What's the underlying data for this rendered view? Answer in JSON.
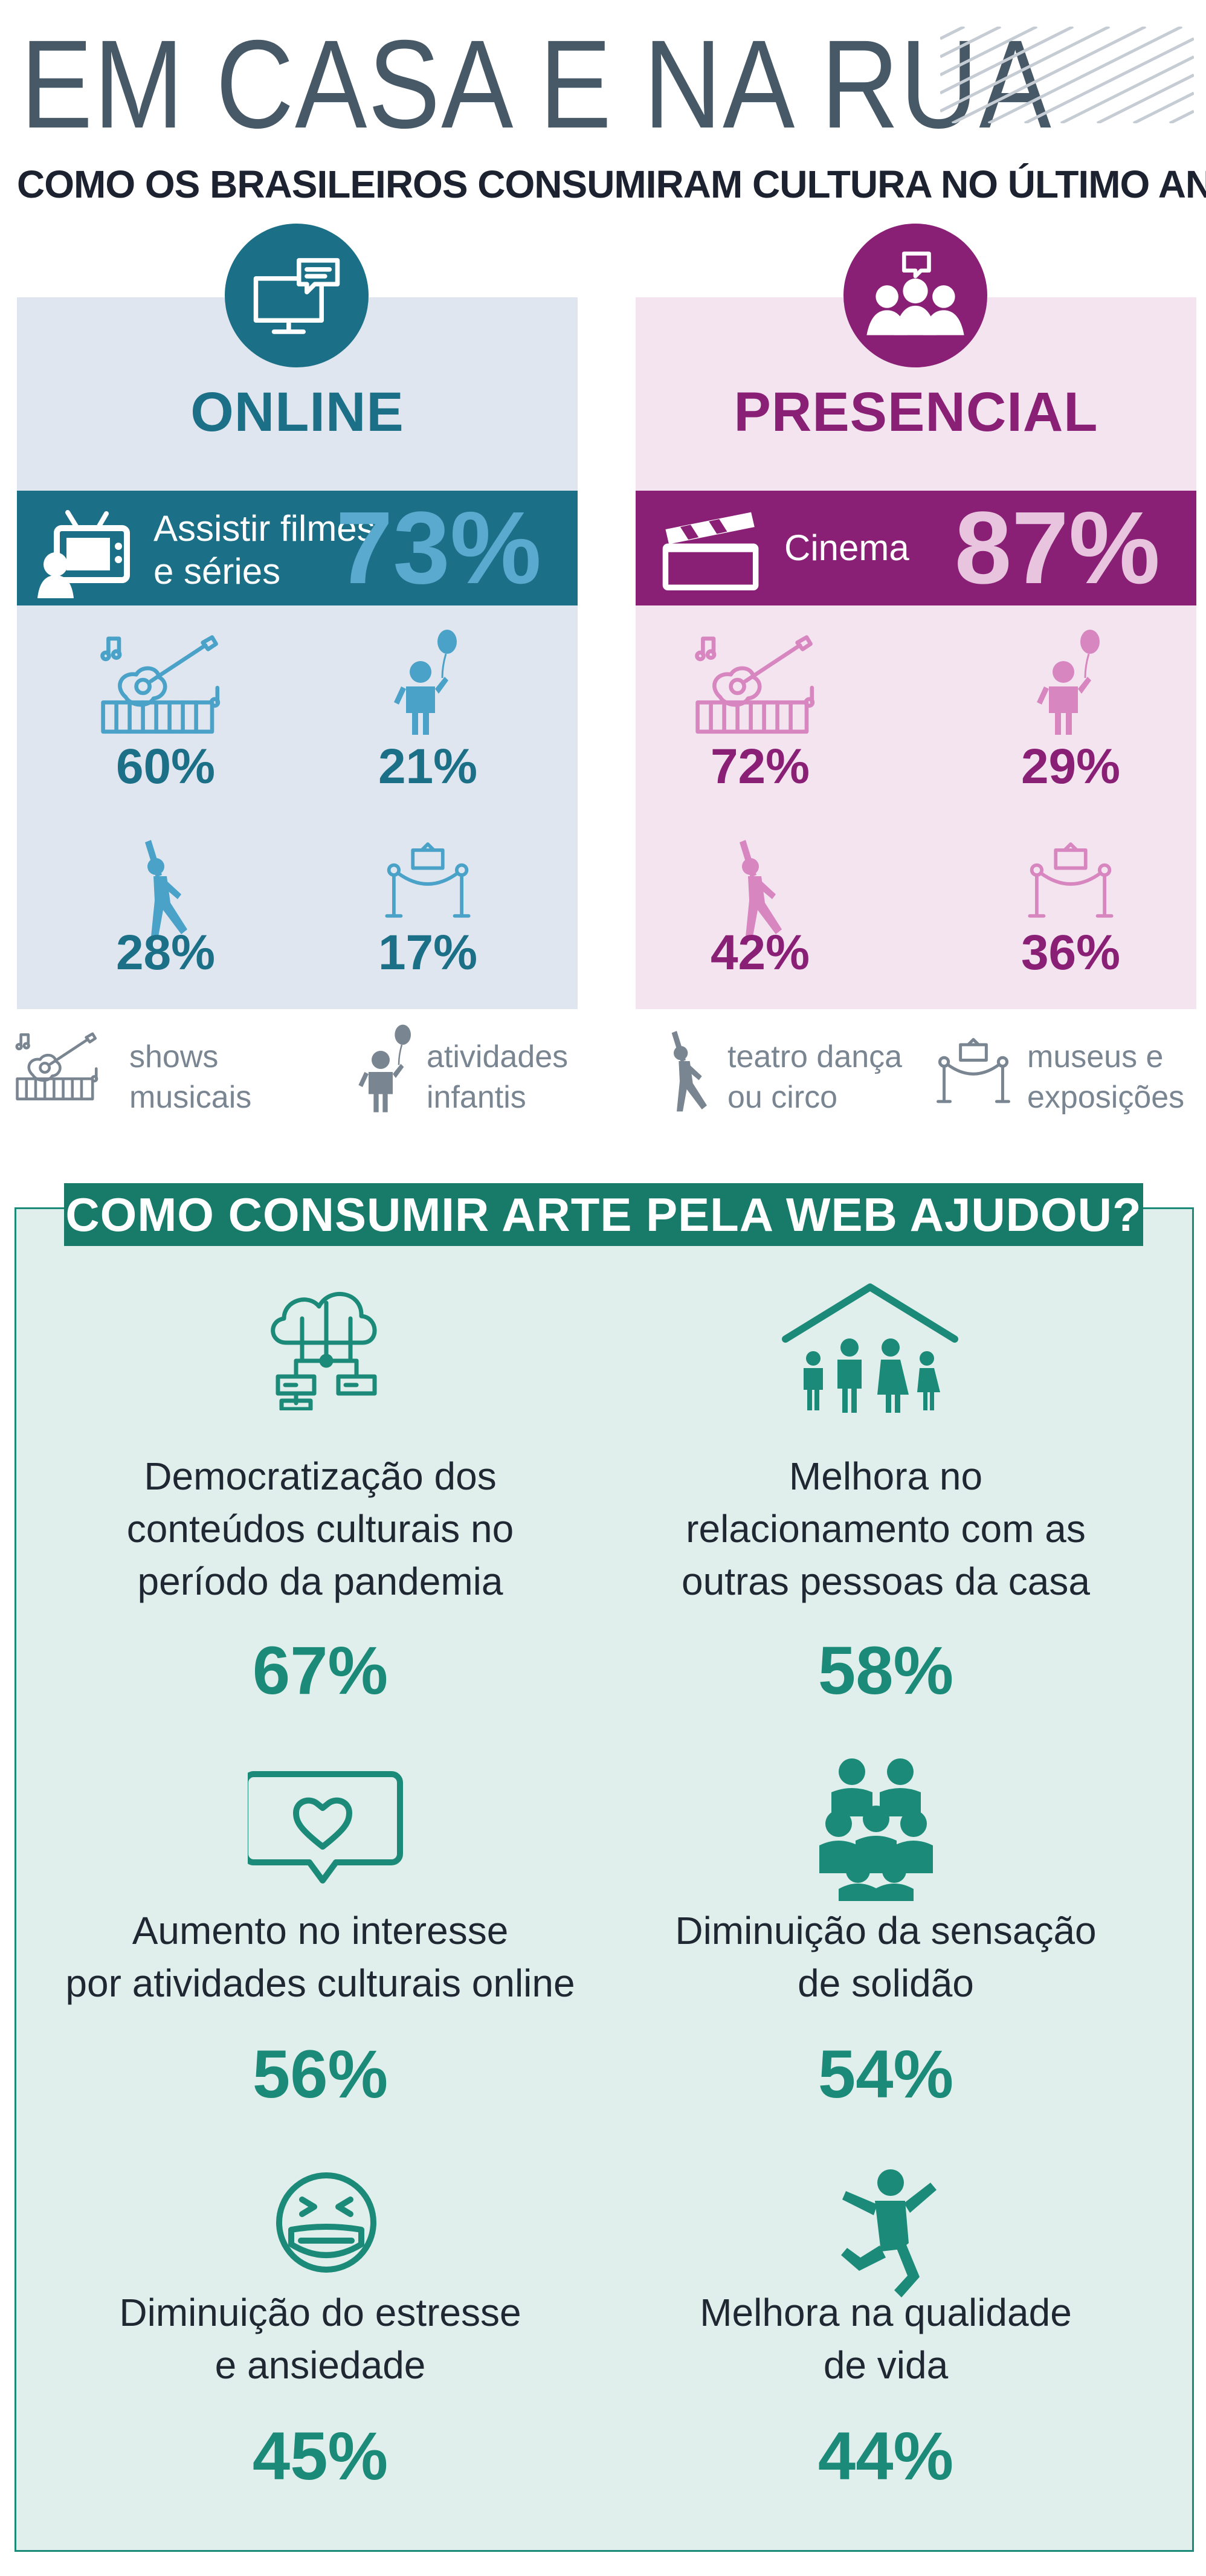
{
  "header": {
    "title": "EM CASA E NA RUA",
    "subtitle": "COMO OS BRASILEIROS CONSUMIRAM CULTURA NO ÚLTIMO ANO"
  },
  "colors": {
    "online_accent": "#1b6f86",
    "online_light": "#4aa2c8",
    "online_bg": "#dfe6ef",
    "presencial_accent": "#8a2076",
    "presencial_light": "#d786c0",
    "presencial_bg": "#f3e4f0",
    "web_accent": "#187a69",
    "web_bg": "#e1efec",
    "legend_gray": "#7a8592"
  },
  "online": {
    "heading": "ONLINE",
    "band_label_line1": "Assistir filmes",
    "band_label_line2": "e séries",
    "band_pct": "73%",
    "shows": "60%",
    "infantis": "21%",
    "teatro": "28%",
    "museus": "17%"
  },
  "presencial": {
    "heading": "PRESENCIAL",
    "band_label": "Cinema",
    "band_pct": "87%",
    "shows": "72%",
    "infantis": "29%",
    "teatro": "42%",
    "museus": "36%"
  },
  "legend": {
    "shows_l1": "shows",
    "shows_l2": "musicais",
    "infantis_l1": "atividades",
    "infantis_l2": "infantis",
    "teatro_l1": "teatro dança",
    "teatro_l2": "ou circo",
    "museus_l1": "museus e",
    "museus_l2": "exposições"
  },
  "web": {
    "title": "COMO CONSUMIR ARTE PELA WEB AJUDOU?",
    "b1_l1": "Democratização dos",
    "b1_l2": "conteúdos culturais no",
    "b1_l3": "período da pandemia",
    "b1_pct": "67%",
    "b2_l1": "Melhora no",
    "b2_l2": "relacionamento com as",
    "b2_l3": "outras pessoas da casa",
    "b2_pct": "58%",
    "b3_l1": "Aumento no interesse",
    "b3_l2": "por atividades culturais online",
    "b3_pct": "56%",
    "b4_l1": "Diminuição da sensação",
    "b4_l2": "de solidão",
    "b4_pct": "54%",
    "b5_l1": "Diminuição do estresse",
    "b5_l2": "e ansiedade",
    "b5_pct": "45%",
    "b6_l1": "Melhora na qualidade",
    "b6_l2": "de vida",
    "b6_pct": "44%"
  }
}
